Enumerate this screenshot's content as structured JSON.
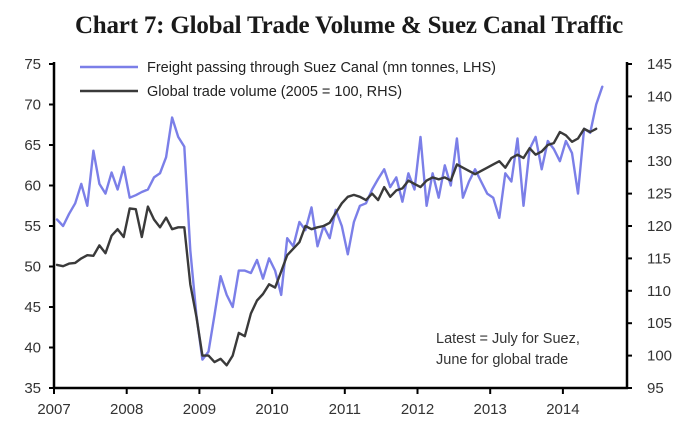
{
  "chart_data": {
    "type": "line",
    "title": "Chart 7: Global Trade Volume & Suez Canal Traffic",
    "xlabel": "",
    "x_start": "2007-01",
    "x_frequency": "monthly",
    "x_tick_labels": [
      "2007",
      "2008",
      "2009",
      "2010",
      "2011",
      "2012",
      "2013",
      "2014"
    ],
    "x_range": [
      2007.0,
      2014.88
    ],
    "left_axis": {
      "label": "mn tonnes",
      "ylim": [
        35,
        75
      ],
      "ticks": [
        35,
        40,
        45,
        50,
        55,
        60,
        65,
        70,
        75
      ]
    },
    "right_axis": {
      "label": "2005 = 100",
      "ylim": [
        95,
        145
      ],
      "ticks": [
        95,
        100,
        105,
        110,
        115,
        120,
        125,
        130,
        135,
        140,
        145
      ]
    },
    "grid": false,
    "legend_position": "top-left",
    "series": [
      {
        "name": "Freight passing through  Suez Canal (mn tonnes,  LHS)",
        "axis": "left",
        "color": "#7b7fe8",
        "values": [
          55.8,
          55.0,
          56.5,
          57.8,
          60.2,
          57.5,
          64.3,
          60.2,
          59.0,
          61.6,
          59.5,
          62.3,
          58.5,
          58.8,
          59.2,
          59.5,
          61.0,
          61.5,
          63.5,
          68.4,
          66.0,
          64.8,
          52.0,
          44.0,
          38.5,
          39.5,
          44.0,
          48.8,
          46.5,
          45.0,
          49.5,
          49.5,
          49.2,
          50.8,
          48.5,
          51.0,
          49.5,
          46.5,
          53.5,
          52.5,
          55.5,
          54.5,
          57.3,
          52.5,
          55.0,
          53.5,
          57.0,
          55.0,
          51.5,
          55.5,
          57.5,
          57.8,
          59.5,
          60.8,
          62.0,
          59.8,
          61.0,
          58.0,
          61.5,
          59.5,
          66.0,
          57.5,
          61.5,
          58.5,
          62.5,
          60.0,
          65.8,
          58.5,
          60.5,
          62.0,
          60.5,
          59.0,
          58.5,
          56.0,
          61.5,
          60.5,
          65.8,
          57.5,
          64.5,
          66.0,
          62.0,
          65.5,
          64.5,
          63.0,
          65.5,
          64.0,
          59.0,
          67.0,
          66.5,
          70.0,
          72.2
        ]
      },
      {
        "name": "Global trade volume  (2005  = 100,  RHS)",
        "axis": "right",
        "color": "#3a3a3a",
        "values": [
          114.0,
          113.8,
          114.2,
          114.3,
          115.0,
          115.5,
          115.4,
          117.0,
          115.8,
          118.5,
          119.5,
          118.3,
          122.7,
          122.6,
          118.3,
          123.0,
          121.0,
          119.8,
          121.3,
          119.5,
          119.8,
          119.8,
          111.0,
          106.0,
          100.0,
          100.0,
          99.0,
          99.5,
          98.5,
          100.0,
          103.5,
          103.0,
          106.5,
          108.5,
          109.5,
          111.0,
          110.5,
          113.0,
          115.5,
          116.5,
          117.5,
          120.0,
          119.5,
          119.8,
          120.0,
          120.5,
          122.0,
          123.5,
          124.5,
          124.8,
          124.5,
          124.0,
          125.0,
          124.0,
          126.0,
          124.5,
          125.5,
          125.8,
          127.0,
          126.5,
          126.0,
          127.0,
          127.5,
          127.2,
          127.5,
          127.0,
          129.5,
          129.0,
          128.5,
          128.0,
          128.5,
          129.0,
          129.5,
          130.0,
          129.0,
          130.5,
          131.0,
          130.5,
          132.0,
          131.0,
          131.5,
          132.5,
          132.8,
          134.5,
          134.0,
          133.0,
          133.5,
          135.0,
          134.5,
          135.0
        ]
      }
    ],
    "annotations": [
      "Latest = July  for  Suez,",
      "June for  global trade"
    ]
  }
}
